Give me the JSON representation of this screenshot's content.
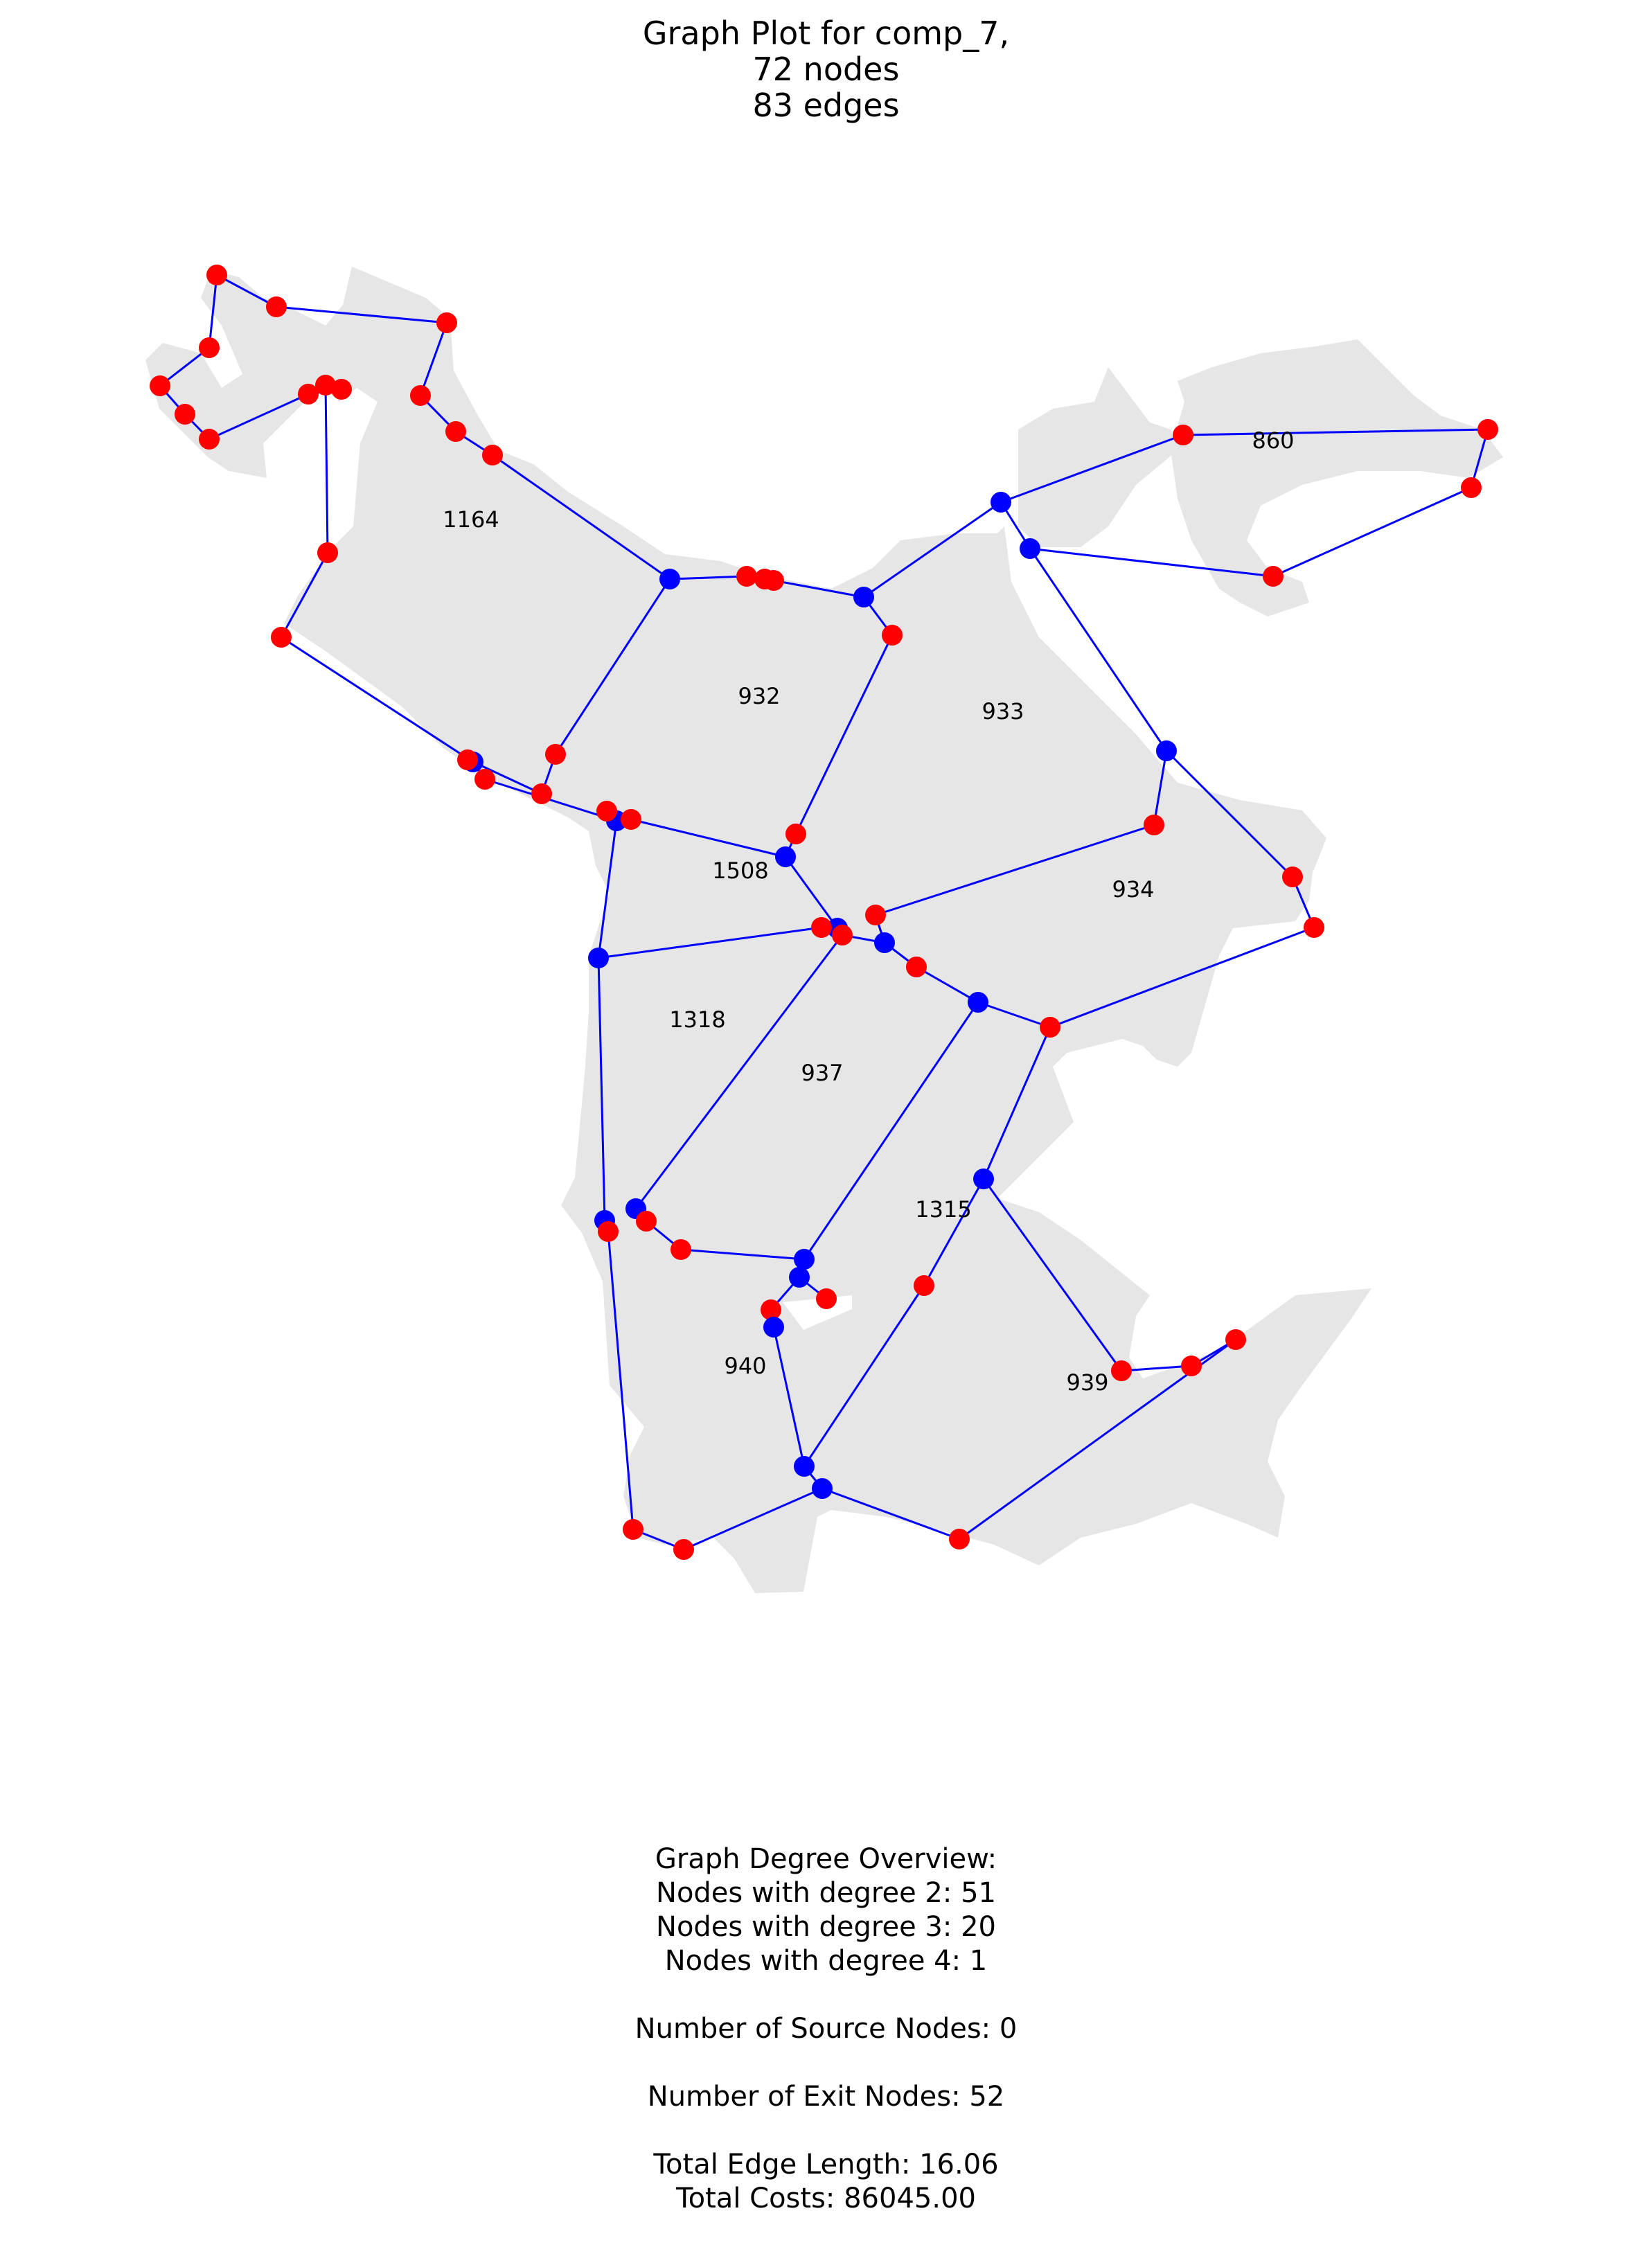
{
  "title": {
    "line1": "Graph Plot for comp_7,",
    "line2": "72 nodes",
    "line3": "83 edges"
  },
  "colors": {
    "region_fill": "#e6e6e6",
    "edge": "#0000ff",
    "inner_node": "#0000ff",
    "exit_node": "#ff0000"
  },
  "regions": [
    {
      "label": "1164"
    },
    {
      "label": "932"
    },
    {
      "label": "933"
    },
    {
      "label": "860"
    },
    {
      "label": "934"
    },
    {
      "label": "1508"
    },
    {
      "label": "1318"
    },
    {
      "label": "937"
    },
    {
      "label": "1315"
    },
    {
      "label": "940"
    },
    {
      "label": "939"
    }
  ],
  "overview": {
    "heading": "Graph Degree Overview:",
    "degree2": "Nodes with degree 2: 51",
    "degree3": "Nodes with degree 3: 20",
    "degree4": "Nodes with degree 4: 1",
    "source_nodes": "Number of Source Nodes: 0",
    "exit_nodes": "Number of Exit Nodes: 52",
    "total_length": "Total Edge Length: 16.06",
    "total_costs": "Total Costs: 86045.00"
  }
}
